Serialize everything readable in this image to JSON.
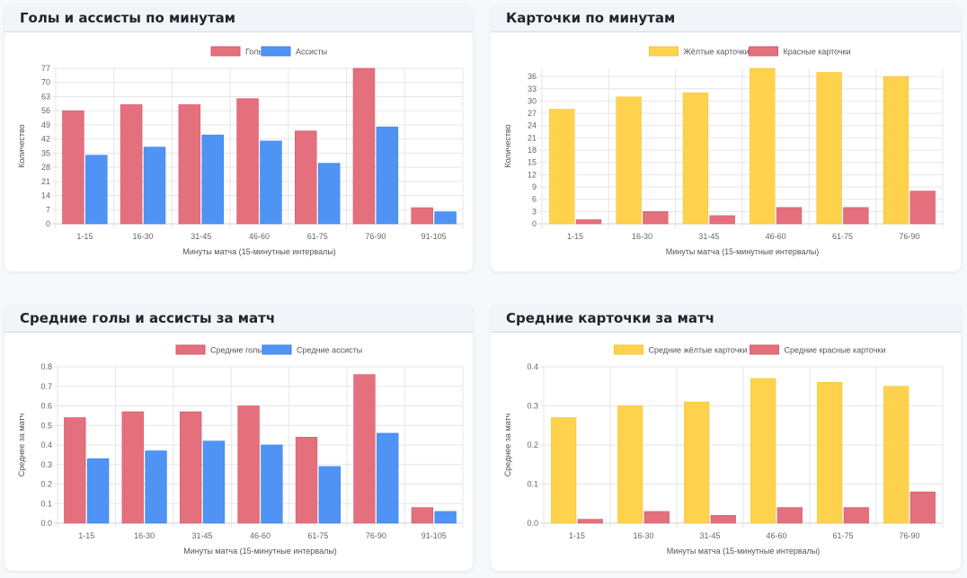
{
  "colors": {
    "goals": "#e4707d",
    "goals_border": "#d9586a",
    "assists": "#4f94f5",
    "assists_border": "#3a82ea",
    "yellow": "#ffd24d",
    "yellow_border": "#f4c236",
    "red": "#e4707d",
    "red_border": "#d9586a"
  },
  "cards": [
    {
      "title": "Голы и ассисты по минутам"
    },
    {
      "title": "Карточки по минутам"
    },
    {
      "title": "Средние голы и ассисты за матч"
    },
    {
      "title": "Средние карточки за матч"
    }
  ],
  "chart_data": [
    {
      "type": "bar",
      "title": "Голы и ассисты по минутам",
      "xlabel": "Минуты матча (15-минутные интервалы)",
      "ylabel": "Количество",
      "categories": [
        "1-15",
        "16-30",
        "31-45",
        "46-60",
        "61-75",
        "76-90",
        "91-105"
      ],
      "series": [
        {
          "name": "Голы",
          "color_key": "goals",
          "values": [
            56,
            59,
            59,
            62,
            46,
            77,
            8
          ]
        },
        {
          "name": "Ассисты",
          "color_key": "assists",
          "values": [
            34,
            38,
            44,
            41,
            30,
            48,
            6
          ]
        }
      ],
      "ylim": [
        0,
        77
      ],
      "yticks": [
        "0",
        "7",
        "14",
        "21",
        "28",
        "35",
        "42",
        "49",
        "56",
        "63",
        "70",
        "77"
      ],
      "grid": true,
      "legend": "top-center"
    },
    {
      "type": "bar",
      "title": "Карточки по минутам",
      "xlabel": "Минуты матча (15-минутные интервалы)",
      "ylabel": "Количество",
      "categories": [
        "1-15",
        "16-30",
        "31-45",
        "46-60",
        "61-75",
        "76-90"
      ],
      "series": [
        {
          "name": "Жёлтые карточки",
          "color_key": "yellow",
          "values": [
            28,
            31,
            32,
            38,
            37,
            36
          ]
        },
        {
          "name": "Красные карточки",
          "color_key": "red",
          "values": [
            1,
            3,
            2,
            4,
            4,
            8
          ]
        }
      ],
      "ylim": [
        0,
        38
      ],
      "yticks": [
        "0",
        "3",
        "6",
        "9",
        "12",
        "15",
        "18",
        "21",
        "24",
        "27",
        "30",
        "33",
        "36"
      ],
      "grid": true,
      "legend": "top-center"
    },
    {
      "type": "bar",
      "title": "Средние голы и ассисты за матч",
      "xlabel": "Минуты матча (15-минутные интервалы)",
      "ylabel": "Среднее за матч",
      "categories": [
        "1-15",
        "16-30",
        "31-45",
        "46-60",
        "61-75",
        "76-90",
        "91-105"
      ],
      "series": [
        {
          "name": "Средние голы",
          "color_key": "goals",
          "values": [
            0.54,
            0.57,
            0.57,
            0.6,
            0.44,
            0.76,
            0.08
          ]
        },
        {
          "name": "Средние ассисты",
          "color_key": "assists",
          "values": [
            0.33,
            0.37,
            0.42,
            0.4,
            0.29,
            0.46,
            0.06
          ]
        }
      ],
      "ylim": [
        0,
        0.8
      ],
      "yticks": [
        "0.0",
        "0.1",
        "0.2",
        "0.3",
        "0.4",
        "0.5",
        "0.6",
        "0.7",
        "0.8"
      ],
      "grid": true,
      "legend": "top-center"
    },
    {
      "type": "bar",
      "title": "Средние карточки за матч",
      "xlabel": "Минуты матча (15-минутные интервалы)",
      "ylabel": "Среднее за матч",
      "categories": [
        "1-15",
        "16-30",
        "31-45",
        "46-60",
        "61-75",
        "76-90"
      ],
      "series": [
        {
          "name": "Средние жёлтые карточки",
          "color_key": "yellow",
          "values": [
            0.27,
            0.3,
            0.31,
            0.37,
            0.36,
            0.35
          ]
        },
        {
          "name": "Средние красные карточки",
          "color_key": "red",
          "values": [
            0.01,
            0.03,
            0.02,
            0.04,
            0.04,
            0.08
          ]
        }
      ],
      "ylim": [
        0,
        0.4
      ],
      "yticks": [
        "0.0",
        "0.1",
        "0.2",
        "0.3",
        "0.4"
      ],
      "grid": true,
      "legend": "top-center"
    }
  ]
}
